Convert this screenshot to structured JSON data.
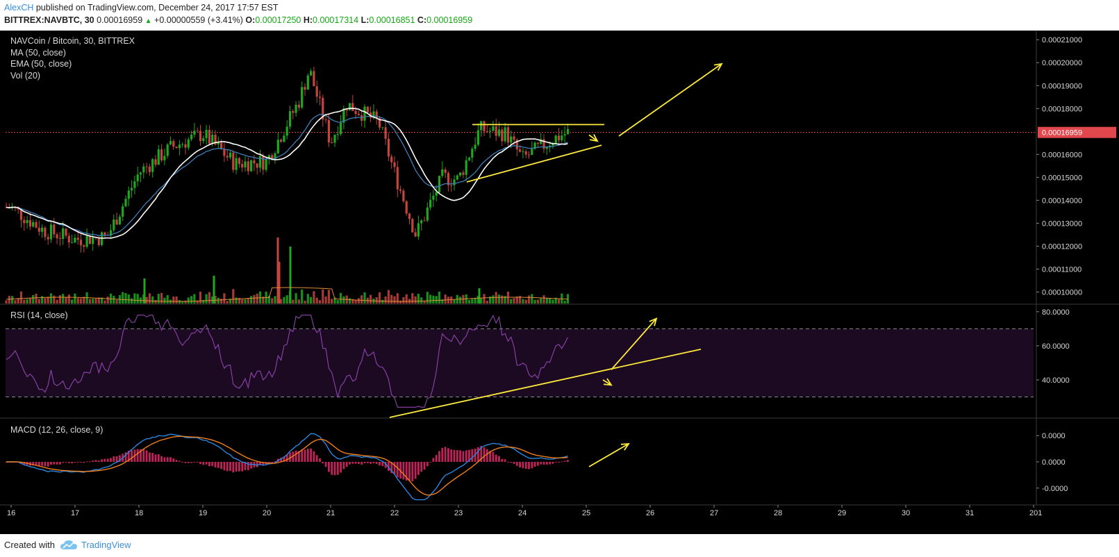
{
  "header": {
    "author": "AlexCH",
    "published_text": "published on TradingView.com, December 24, 2017 17:57 EST",
    "symbol": "BITTREX:NAVBTC, 30",
    "last": "0.00016959",
    "change": "+0.00000559 (+3.41%)",
    "ohlc": [
      {
        "k": "O:",
        "v": "0.00017250"
      },
      {
        "k": "H:",
        "v": "0.00017314"
      },
      {
        "k": "L:",
        "v": "0.00016851"
      },
      {
        "k": "C:",
        "v": "0.00016959"
      }
    ]
  },
  "panes": {
    "main_title": "NAVCoin / Bitcoin, 30, BITTREX",
    "ma": "MA (50, close)",
    "ema": "EMA (50, close)",
    "vol": "Vol (20)",
    "rsi": "RSI (14, close)",
    "macd": "MACD (12, 26, close, 9)"
  },
  "price_axis": [
    "0.00021000",
    "0.00020000",
    "0.00019000",
    "0.00018000",
    "0.00016959",
    "0.00016000",
    "0.00015000",
    "0.00014000",
    "0.00013000",
    "0.00012000",
    "0.00011000",
    "0.00010000"
  ],
  "rsi_axis": [
    "80.0000",
    "60.0000",
    "40.0000"
  ],
  "macd_axis": [
    "0.0000",
    "0.0000",
    "-0.0000"
  ],
  "time_axis": [
    "16",
    "17",
    "18",
    "19",
    "20",
    "21",
    "22",
    "23",
    "24",
    "25",
    "26",
    "27",
    "28",
    "29",
    "30",
    "31",
    "201"
  ],
  "colors": {
    "up": "#1fa81f",
    "down": "#c2453e",
    "ma": "#ffffff",
    "ema": "#3d7fb8",
    "rsi": "#8e44ad",
    "macd": "#2e86de",
    "signal": "#f07f1b",
    "hist": "#c0235a",
    "annotation": "#ffeb3b",
    "last_price": "#e0484e"
  },
  "chart_data": {
    "type": "candlestick",
    "title": "NAVCoin / Bitcoin, 30, BITTREX",
    "x_range": [
      "2017-12-16",
      "2018-01-01"
    ],
    "last_price": 0.00016959,
    "price_ylim": [
      9.5e-05,
      0.000214
    ],
    "close_path": [
      {
        "t": "2017-12-16 00:00",
        "c": 0.000137
      },
      {
        "t": "2017-12-16 12:00",
        "c": 0.000127
      },
      {
        "t": "2017-12-17 00:00",
        "c": 0.000123
      },
      {
        "t": "2017-12-17 12:00",
        "c": 0.000124
      },
      {
        "t": "2017-12-18 00:00",
        "c": 0.000152
      },
      {
        "t": "2017-12-18 12:00",
        "c": 0.000163
      },
      {
        "t": "2017-12-19 00:00",
        "c": 0.000169
      },
      {
        "t": "2017-12-19 12:00",
        "c": 0.000156
      },
      {
        "t": "2017-12-20 00:00",
        "c": 0.000157
      },
      {
        "t": "2017-12-20 12:00",
        "c": 0.000183
      },
      {
        "t": "2017-12-20 16:00",
        "c": 0.000197
      },
      {
        "t": "2017-12-21 00:00",
        "c": 0.000165
      },
      {
        "t": "2017-12-21 06:00",
        "c": 0.000182
      },
      {
        "t": "2017-12-21 18:00",
        "c": 0.000174
      },
      {
        "t": "2017-12-22 00:00",
        "c": 0.000152
      },
      {
        "t": "2017-12-22 08:00",
        "c": 0.000125
      },
      {
        "t": "2017-12-22 18:00",
        "c": 0.00015
      },
      {
        "t": "2017-12-23 00:00",
        "c": 0.000149
      },
      {
        "t": "2017-12-23 08:00",
        "c": 0.000171
      },
      {
        "t": "2017-12-23 18:00",
        "c": 0.000169
      },
      {
        "t": "2017-12-24 00:00",
        "c": 0.000158
      },
      {
        "t": "2017-12-24 12:00",
        "c": 0.000167
      },
      {
        "t": "2017-12-24 18:00",
        "c": 0.00017
      }
    ],
    "rsi": {
      "overbought": 70,
      "oversold": 30,
      "ylim": [
        20,
        80
      ]
    },
    "annotations": [
      "resistance line across the tops at about 0.000173 on Dec 23-24",
      "rising support line",
      "up arrows on price, RSI and MACD"
    ]
  }
}
